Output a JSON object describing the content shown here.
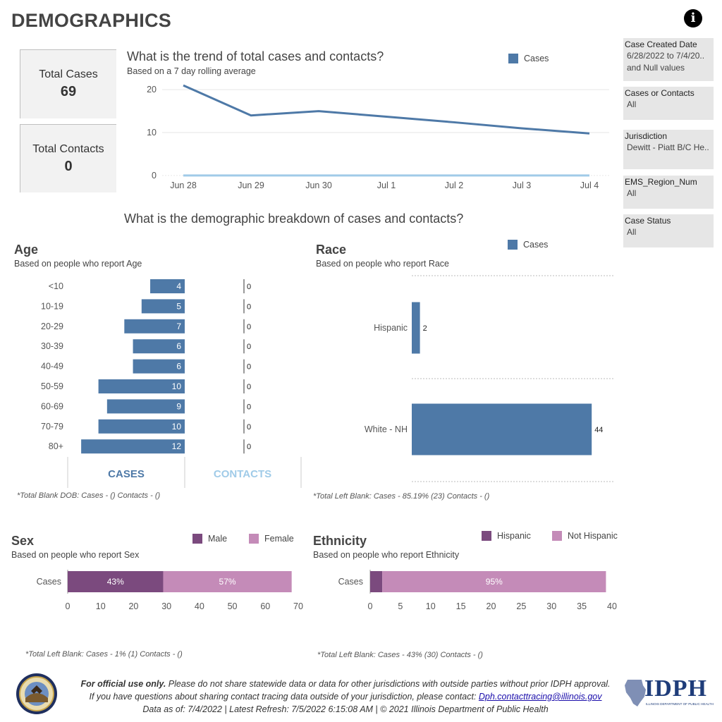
{
  "page_title": "DEMOGRAPHICS",
  "kpis": {
    "total_cases_label": "Total Cases",
    "total_cases_value": "69",
    "total_contacts_label": "Total Contacts",
    "total_contacts_value": "0"
  },
  "trend": {
    "title": "What is the trend of total cases and contacts?",
    "subtitle": "Based on a 7 day rolling average",
    "legend_label": "Cases"
  },
  "breakdown_title": "What is the demographic breakdown of cases and contacts?",
  "age": {
    "title": "Age",
    "subtitle": "Based on people who report Age",
    "cases_tab": "CASES",
    "contacts_tab": "CONTACTS",
    "note": "*Total Blank DOB: Cases -  () Contacts -  ()"
  },
  "race": {
    "title": "Race",
    "subtitle": "Based on people who report Race",
    "legend_label": "Cases",
    "note": "*Total Left Blank: Cases - 85.19% (23) Contacts -  ()"
  },
  "sex": {
    "title": "Sex",
    "subtitle": "Based on people who report Sex",
    "legend": [
      "Male",
      "Female"
    ],
    "note": "*Total Left Blank: Cases - 1% (1) Contacts -  ()"
  },
  "ethnicity": {
    "title": "Ethnicity",
    "subtitle": "Based on people who report Ethnicity",
    "legend": [
      "Hispanic",
      "Not Hispanic"
    ],
    "note": "*Total Left Blank: Cases - 43% (30) Contacts -  ()"
  },
  "filters": [
    {
      "label": "Case Created Date",
      "value": "6/28/2022 to 7/4/20..\nand Null values"
    },
    {
      "label": "Cases or Contacts",
      "value": "All"
    },
    {
      "label": "Jurisdiction",
      "value": "Dewitt - Piatt B/C He.."
    },
    {
      "label": "EMS_Region_Num",
      "value": "All"
    },
    {
      "label": "Case Status",
      "value": "All"
    }
  ],
  "footer": {
    "line1_bold": "For official use only.",
    "line1_rest": " Please do not share statewide data or data for other jurisdictions with outside parties without prior IDPH approval.",
    "line2_pre": "If you have questions about sharing contact tracing data outside of your jurisdiction, please contact: ",
    "line2_link": "Dph.contacttracing@illinois.gov",
    "line3": "Data as of: 7/4/2022  |  Latest Refresh: 7/5/2022 6:15:08 AM  |  © 2021 Illinois Department of Public Health",
    "logo_text": "IDPH",
    "logo_subtext": "ILLINOIS DEPARTMENT OF PUBLIC HEALTH"
  },
  "colors": {
    "cases_blue": "#4e79a7",
    "contacts_light_blue": "#a0cbe8",
    "male_purple": "#7b4a7e",
    "female_pink": "#c48bb8",
    "cases_tab_color": "#4e79a7",
    "contacts_tab_color": "#a0cbe8"
  },
  "chart_data": [
    {
      "id": "trend",
      "type": "line",
      "x": [
        "Jun 28",
        "Jun 29",
        "Jun 30",
        "Jul 1",
        "Jul 2",
        "Jul 3",
        "Jul 4"
      ],
      "series": [
        {
          "name": "Cases",
          "values": [
            21,
            14,
            15,
            13.7,
            12.4,
            11,
            9.8
          ]
        },
        {
          "values": [
            0,
            0,
            0,
            0,
            0,
            0,
            0
          ]
        }
      ],
      "yticks": [
        0,
        10,
        20
      ],
      "ylim": [
        -1,
        22
      ],
      "grid": true
    },
    {
      "id": "age",
      "type": "bar",
      "orientation": "horizontal",
      "categories": [
        "<10",
        "10-19",
        "20-29",
        "30-39",
        "40-49",
        "50-59",
        "60-69",
        "70-79",
        "80+"
      ],
      "series": [
        {
          "name": "CASES",
          "values": [
            4,
            5,
            7,
            6,
            6,
            10,
            9,
            10,
            12
          ]
        },
        {
          "name": "CONTACTS",
          "values": [
            0,
            0,
            0,
            0,
            0,
            0,
            0,
            0,
            0
          ]
        }
      ],
      "xlim": [
        0,
        12.5
      ]
    },
    {
      "id": "race",
      "type": "bar",
      "orientation": "horizontal",
      "categories": [
        "Hispanic",
        "White - NH"
      ],
      "series": [
        {
          "name": "Cases",
          "values": [
            2,
            44
          ]
        }
      ],
      "xlim": [
        0,
        50
      ]
    },
    {
      "id": "sex",
      "type": "bar",
      "orientation": "horizontal",
      "stacked": true,
      "categories": [
        "Cases"
      ],
      "series": [
        {
          "name": "Male",
          "values": [
            29
          ],
          "label": "43%"
        },
        {
          "name": "Female",
          "values": [
            39
          ],
          "label": "57%"
        }
      ],
      "xticks": [
        0,
        10,
        20,
        30,
        40,
        50,
        60,
        70
      ],
      "xlim": [
        0,
        70
      ]
    },
    {
      "id": "ethnicity",
      "type": "bar",
      "orientation": "horizontal",
      "stacked": true,
      "categories": [
        "Cases"
      ],
      "series": [
        {
          "name": "Hispanic",
          "values": [
            2
          ],
          "label": ""
        },
        {
          "name": "Not Hispanic",
          "values": [
            37
          ],
          "label": "95%"
        }
      ],
      "xticks": [
        0,
        5,
        10,
        15,
        20,
        25,
        30,
        35,
        40
      ],
      "xlim": [
        0,
        40
      ]
    }
  ]
}
